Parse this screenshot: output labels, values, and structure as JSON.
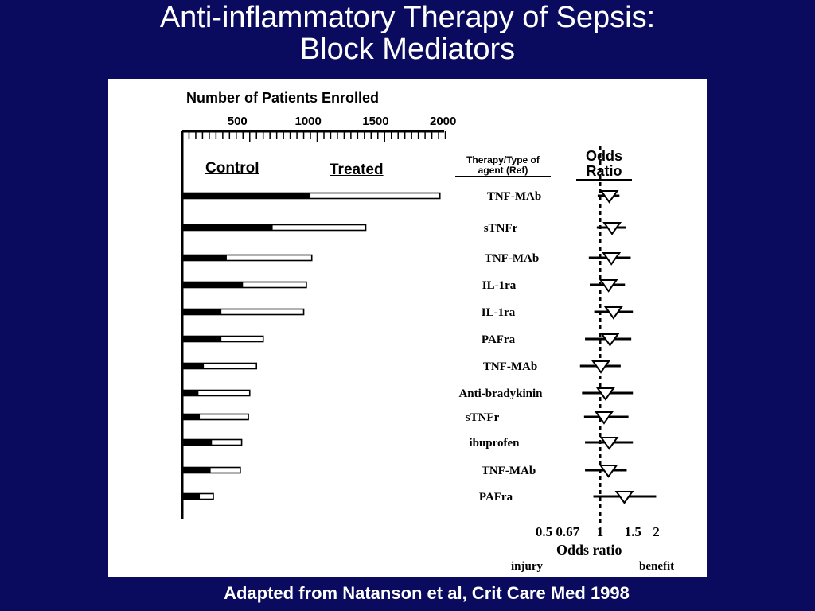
{
  "slide": {
    "title_line1": "Anti-inflammatory Therapy of Sepsis:",
    "title_line2": "Block Mediators",
    "caption": "Adapted from Natanson et al, Crit Care Med 1998"
  },
  "chart_data": [
    {
      "type": "bar",
      "title": "Number of Patients Enrolled",
      "x_ticks": [
        "500",
        "1000",
        "1500",
        "2000"
      ],
      "xlim": [
        0,
        2000
      ],
      "series_labels": [
        "Control",
        "Treated"
      ],
      "categories": [
        "TNF-MAb",
        "sTNFr",
        "TNF-MAb",
        "IL-1ra",
        "IL-1ra",
        "PAFra",
        "TNF-MAb",
        "Anti-bradykinin",
        "sTNFr",
        "ibuprofen",
        "TNF-MAb",
        "PAFra"
      ],
      "series": [
        {
          "name": "Control",
          "values": [
            950,
            670,
            330,
            450,
            290,
            290,
            160,
            120,
            130,
            220,
            210,
            130
          ]
        },
        {
          "name": "Treated",
          "values": [
            1910,
            1360,
            960,
            920,
            900,
            600,
            550,
            500,
            490,
            440,
            430,
            230
          ]
        }
      ],
      "column_header": "Therapy/Type of agent (Ref)"
    },
    {
      "type": "scatter",
      "title": "Odds Ratio",
      "xlabel": "Odds ratio",
      "x_ticks": [
        "0.5",
        "0.67",
        "1",
        "1.5",
        "2"
      ],
      "scale": "log",
      "reference_line": 1,
      "left_label": "injury",
      "right_label": "benefit",
      "categories": [
        "TNF-MAb",
        "sTNFr",
        "TNF-MAb",
        "IL-1ra",
        "IL-1ra",
        "PAFra",
        "TNF-MAb",
        "Anti-bradykinin",
        "sTNFr",
        "ibuprofen",
        "TNF-MAb",
        "PAFra"
      ],
      "estimates": [
        1.12,
        1.16,
        1.15,
        1.11,
        1.18,
        1.13,
        1.01,
        1.07,
        1.05,
        1.12,
        1.11,
        1.35
      ],
      "ci_low": [
        0.97,
        0.96,
        0.87,
        0.88,
        0.93,
        0.83,
        0.78,
        0.8,
        0.82,
        0.83,
        0.83,
        0.92
      ],
      "ci_high": [
        1.27,
        1.38,
        1.46,
        1.36,
        1.5,
        1.47,
        1.29,
        1.5,
        1.42,
        1.5,
        1.39,
        2.0
      ]
    }
  ]
}
